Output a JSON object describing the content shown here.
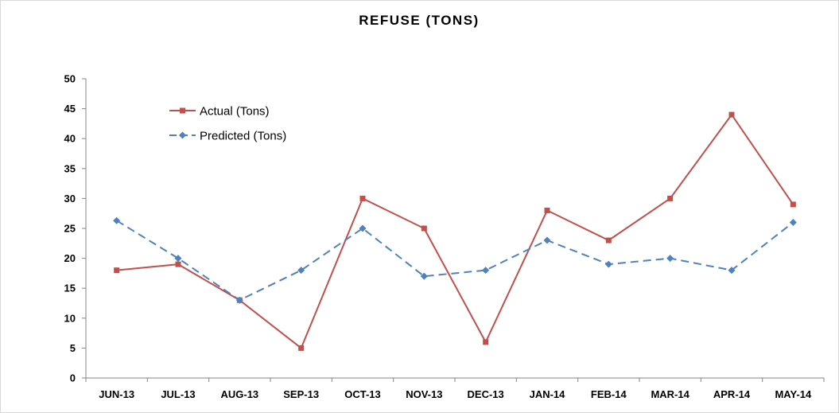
{
  "chart_data": {
    "type": "line",
    "title": "REFUSE (TONS)",
    "xlabel": "",
    "ylabel": "",
    "categories": [
      "JUN-13",
      "JUL-13",
      "AUG-13",
      "SEP-13",
      "OCT-13",
      "NOV-13",
      "DEC-13",
      "JAN-14",
      "FEB-14",
      "MAR-14",
      "APR-14",
      "MAY-14"
    ],
    "ylim": [
      0,
      50
    ],
    "yticks": [
      0,
      5,
      10,
      15,
      20,
      25,
      30,
      35,
      40,
      45,
      50
    ],
    "grid": false,
    "legend_position": "top-left",
    "series": [
      {
        "name": "Actual (Tons)",
        "color": "#c0504d",
        "line_style": "solid",
        "marker": "square",
        "values": [
          18,
          19,
          13,
          5,
          30,
          25,
          6,
          28,
          23,
          30,
          44,
          29
        ]
      },
      {
        "name": "Predicted (Tons)",
        "color": "#4f81bd",
        "line_style": "dashed",
        "marker": "diamond",
        "values": [
          26.3,
          20,
          13,
          18,
          25,
          17,
          18,
          23,
          19,
          20,
          18,
          26
        ]
      }
    ]
  }
}
